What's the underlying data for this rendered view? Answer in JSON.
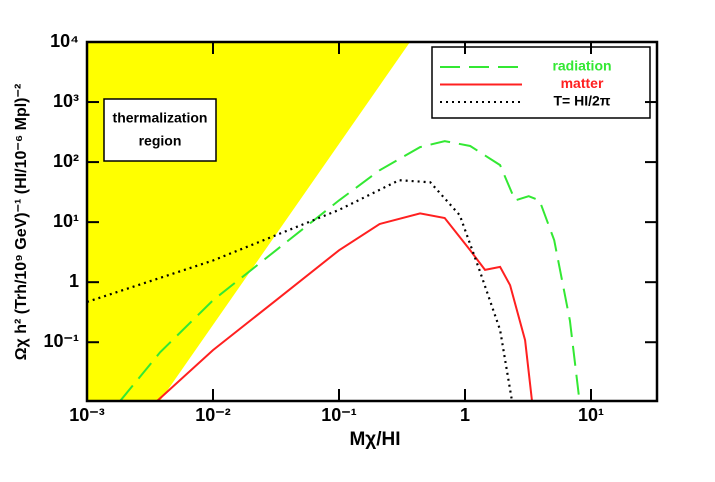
{
  "chart_data": {
    "type": "line",
    "xlabel": "Mχ/HI",
    "ylabel": "Ωχ h² (Trh/10⁹ GeV)⁻¹ (HI/10⁻⁶ Mpl)⁻²",
    "annotations": [
      "thermalization",
      "region"
    ],
    "xscale": "log",
    "yscale": "log",
    "xlim": [
      0.001,
      33.4
    ],
    "ylim": [
      0.0105,
      10000
    ],
    "xticks": [
      {
        "value": 0.001,
        "label": "10⁻³"
      },
      {
        "value": 0.01,
        "label": "10⁻²"
      },
      {
        "value": 0.1,
        "label": "10⁻¹"
      },
      1,
      {
        "value": 10,
        "label": "10¹"
      }
    ],
    "yticks": [
      {
        "value": 0.1,
        "label": "10⁻¹"
      },
      1,
      {
        "value": 10,
        "label": "10¹"
      },
      {
        "value": 100,
        "label": "10²"
      },
      {
        "value": 1000,
        "label": "10³"
      },
      {
        "value": 10000,
        "label": "10⁴"
      }
    ],
    "legend": "upper right",
    "series": [
      {
        "name": "radiation",
        "color": "#33e833",
        "style": "dashed",
        "x": [
          0.00183,
          0.0038,
          0.01,
          0.0316,
          0.1,
          0.21,
          0.44,
          0.69,
          1.1,
          1.9,
          2.5,
          3.2,
          3.9,
          5.1,
          6.8,
          8.1
        ],
        "values": [
          0.0105,
          0.068,
          0.5,
          3.4,
          23,
          73,
          178,
          224,
          185,
          89,
          23,
          27,
          23,
          5,
          0.23,
          0.0105
        ]
      },
      {
        "name": "matter",
        "color": "#ff2020",
        "style": "solid",
        "x": [
          0.0036,
          0.01,
          0.0316,
          0.1,
          0.21,
          0.44,
          0.69,
          1.1,
          1.44,
          1.9,
          2.28,
          3.0,
          3.4
        ],
        "values": [
          0.0105,
          0.074,
          0.5,
          3.4,
          9.3,
          14,
          11.7,
          3.4,
          1.6,
          1.8,
          0.89,
          0.108,
          0.0105
        ]
      },
      {
        "name": "T= HI/2π",
        "color": "#000000",
        "style": "dotted",
        "x": [
          0.001,
          0.01,
          0.1,
          0.3,
          0.53,
          0.91,
          1.3,
          1.9,
          2.36
        ],
        "values": [
          0.47,
          2.3,
          16,
          50,
          46,
          13,
          1.6,
          0.16,
          0.0105
        ]
      }
    ]
  }
}
